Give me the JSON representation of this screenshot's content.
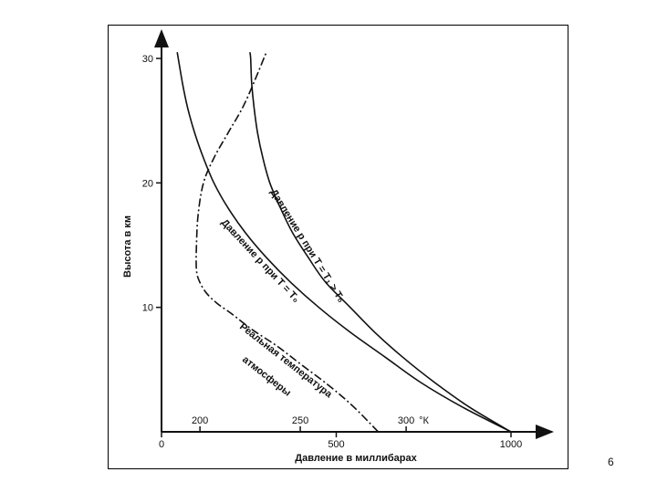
{
  "page_number": "6",
  "chart_data": {
    "type": "line",
    "xlabel": "Давление в миллибарах",
    "ylabel": "Высота в км",
    "xlim": [
      0,
      1000
    ],
    "ylim": [
      0,
      30
    ],
    "y_ticks": [
      {
        "value": 10,
        "label": "10"
      },
      {
        "value": 20,
        "label": "20"
      },
      {
        "value": 30,
        "label": "30"
      }
    ],
    "x_ticks": [
      {
        "value": 0,
        "label": "0"
      },
      {
        "value": 500,
        "label": "500"
      },
      {
        "value": 1000,
        "label": "1000"
      }
    ],
    "temperature_scale": {
      "unit_label": "°К",
      "ticks": [
        {
          "pressure_position": 110,
          "label": "200"
        },
        {
          "pressure_position": 397,
          "label": "250"
        },
        {
          "pressure_position": 700,
          "label": "300"
        }
      ]
    },
    "series": [
      {
        "name": "Давление p при T = T₀",
        "style": "solid",
        "x": [
          1000,
          860,
          740,
          640,
          540,
          450,
          370,
          300,
          240,
          190,
          150,
          120,
          95,
          75,
          60,
          45
        ],
        "y": [
          0,
          2,
          4,
          6,
          8,
          10,
          12,
          14,
          16,
          18,
          20,
          22,
          24,
          26,
          28,
          30.5
        ]
      },
      {
        "name": "Давление p при T = T₁ > T₀",
        "style": "solid",
        "x": [
          1000,
          880,
          780,
          690,
          610,
          540,
          470,
          420,
          375,
          340,
          310,
          290,
          275,
          265,
          258,
          255,
          253
        ],
        "y": [
          0,
          2,
          4,
          6,
          8,
          10,
          12,
          14,
          16,
          18,
          20,
          22,
          24,
          26,
          28,
          30,
          30.5
        ]
      },
      {
        "name": "Реальная температура атмосферы",
        "style": "dash-dot",
        "x": [
          620,
          550,
          480,
          400,
          330,
          260,
          200,
          160,
          130,
          110,
          100,
          100,
          105,
          120,
          150,
          190,
          240,
          300
        ],
        "y": [
          0,
          2,
          3.7,
          5.4,
          6.9,
          8.2,
          9.5,
          10.3,
          11.1,
          12,
          13,
          15,
          17.5,
          20,
          22,
          24,
          26.5,
          30.5
        ]
      }
    ],
    "curve_labels": [
      {
        "text": "Давление p при T = T₁ > T₀",
        "series": 1
      },
      {
        "text": "Давление p при T = T₀",
        "series": 0
      },
      {
        "text": "Реальная температура",
        "series": 2,
        "line": 1
      },
      {
        "text": "атмосферы",
        "series": 2,
        "line": 2
      }
    ]
  }
}
